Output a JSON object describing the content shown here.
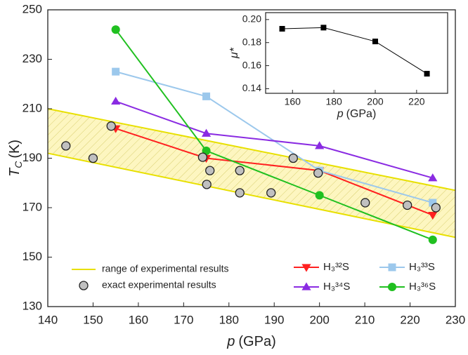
{
  "chart_data": [
    {
      "type": "line",
      "xlabel": [
        "p",
        "(GPa)"
      ],
      "ylabel": [
        "T",
        "C",
        "(K)"
      ],
      "xlim": [
        140,
        230
      ],
      "xticks": [
        140,
        150,
        160,
        170,
        180,
        190,
        200,
        210,
        220,
        230
      ],
      "ylim": [
        130,
        250
      ],
      "yticks": [
        130,
        150,
        170,
        190,
        210,
        230,
        250
      ],
      "grid": false,
      "band": {
        "name": "range of experimental results",
        "color": "#e8e000",
        "x": [
          140,
          230
        ],
        "upper": [
          210,
          177
        ],
        "lower": [
          192,
          158
        ]
      },
      "experimental": {
        "name": "exact experimental results",
        "color": "#c0c0c0",
        "x": [
          144.0,
          150.0,
          154.0,
          174.2,
          175.8,
          175.1,
          182.4,
          182.4,
          189.3,
          194.2,
          199.7,
          210.1,
          219.4,
          225.7
        ],
        "values": [
          195,
          190,
          203,
          190.4,
          185,
          179.4,
          185,
          176,
          176,
          190,
          184,
          172,
          171,
          170
        ]
      },
      "x": [
        155,
        175,
        200,
        225
      ],
      "series": [
        {
          "name": "H₃³²S",
          "color": "#ff2020",
          "marker": "triangle-down",
          "values": [
            202,
            190,
            185,
            167
          ]
        },
        {
          "name": "H₃³³S",
          "color": "#9cc8ec",
          "marker": "square",
          "values": [
            225,
            215,
            185,
            172
          ]
        },
        {
          "name": "H₃³⁴S",
          "color": "#8a2be2",
          "marker": "triangle-up",
          "values": [
            213,
            200,
            195,
            182
          ]
        },
        {
          "name": "H₃³⁶S",
          "color": "#20c020",
          "marker": "circle",
          "values": [
            242,
            193,
            175,
            157
          ]
        }
      ]
    },
    {
      "type": "line",
      "xlabel": [
        "p",
        "(GPa)"
      ],
      "ylabel": "μ*",
      "xlim": [
        147,
        235
      ],
      "xticks": [
        160,
        180,
        200,
        220
      ],
      "ylim": [
        0.136,
        0.206
      ],
      "yticks": [
        {
          "value": 0.14,
          "label": "0.14"
        },
        {
          "value": 0.16,
          "label": "0.16"
        },
        {
          "value": 0.18,
          "label": "0.18"
        },
        {
          "value": 0.2,
          "label": "0.20"
        }
      ],
      "x": [
        155,
        175,
        200,
        225
      ],
      "series": [
        {
          "color": "#000000",
          "marker": "square",
          "values": [
            0.192,
            0.193,
            0.181,
            0.153
          ]
        }
      ]
    }
  ]
}
